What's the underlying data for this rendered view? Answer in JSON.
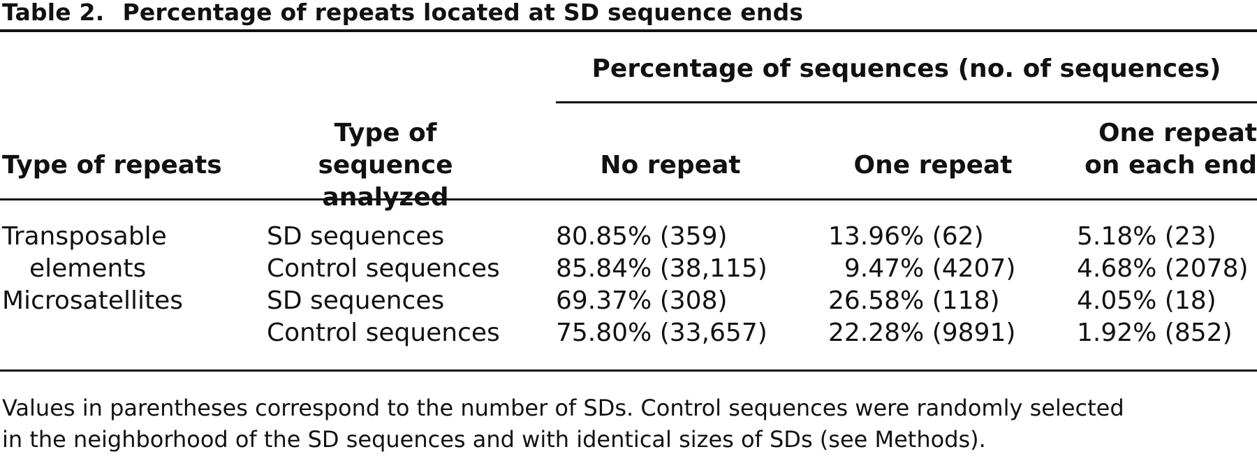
{
  "caption": {
    "label": "Table 2.",
    "title": "Percentage of repeats located at SD sequence ends"
  },
  "header": {
    "span_label": "Percentage of sequences (no. of sequences)",
    "col_type_of_repeats": "Type of repeats",
    "col_type_of_sequence": "Type of sequence analyzed",
    "col_no_repeat": "No repeat",
    "col_one_repeat": "One repeat",
    "col_one_repeat_each_end": "One repeat on each end"
  },
  "rows": [
    {
      "repeat_type_line1": "Transposable",
      "repeat_type_line2": "elements",
      "seq1": "SD sequences",
      "seq2": "Control sequences",
      "no_repeat1": "80.85% (359)",
      "no_repeat2": "85.84% (38,115)",
      "one_repeat1": "13.96% (62)",
      "one_repeat2": "  9.47% (4207)",
      "each_end1": "5.18% (23)",
      "each_end2": "4.68% (2078)"
    },
    {
      "repeat_type_line1": "Microsatellites",
      "seq1": "SD sequences",
      "seq2": "Control sequences",
      "no_repeat1": "69.37% (308)",
      "no_repeat2": "75.80% (33,657)",
      "one_repeat1": "26.58% (118)",
      "one_repeat2": "22.28% (9891)",
      "each_end1": "4.05% (18)",
      "each_end2": "1.92% (852)"
    }
  ],
  "footnote": {
    "line1": "Values in parentheses correspond to the number of SDs. Control sequences were randomly selected",
    "line2": "in the neighborhood of the SD sequences and with identical sizes of SDs (see Methods)."
  }
}
